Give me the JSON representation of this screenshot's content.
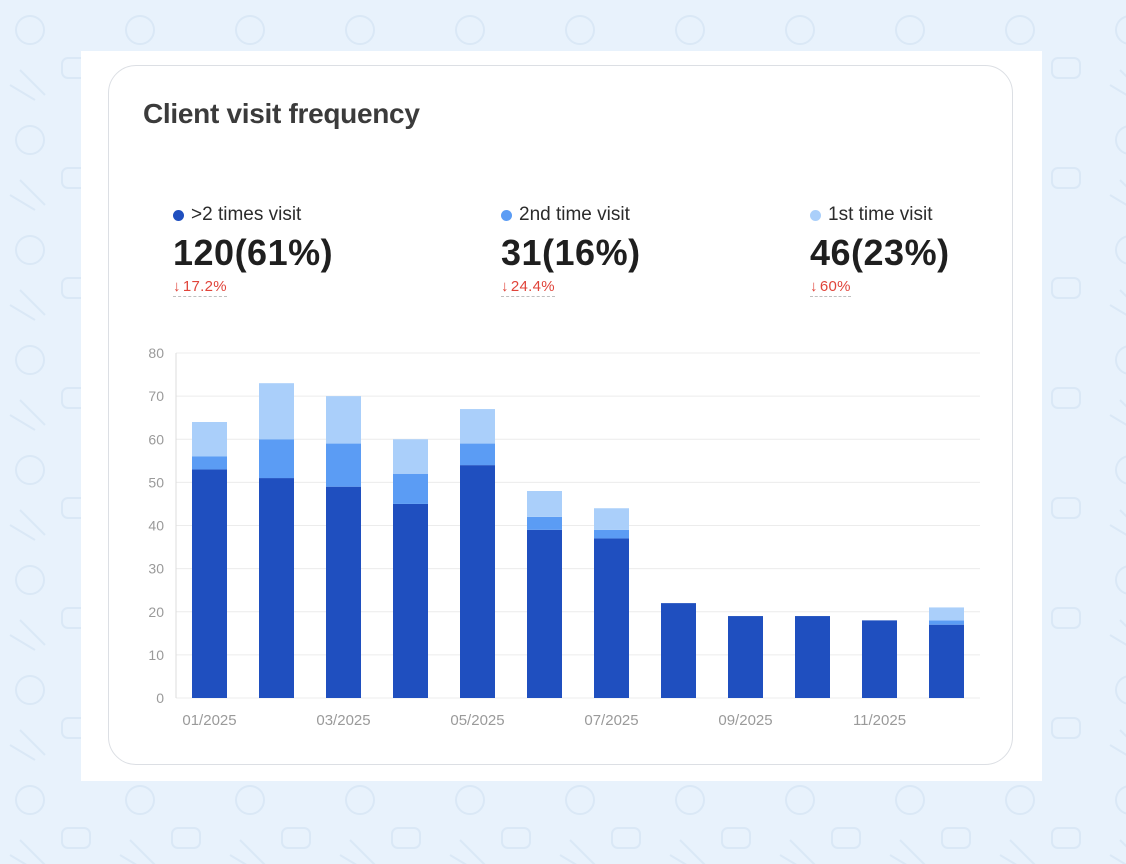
{
  "title": "Client visit frequency",
  "stats": [
    {
      "legend": ">2 times visit",
      "value": "120(61%)",
      "change_icon": "arrow-down-icon",
      "change": "17.2%",
      "color": "#1f4fbf"
    },
    {
      "legend": "2nd time visit",
      "value": "31(16%)",
      "change_icon": "arrow-down-icon",
      "change": "24.4%",
      "color": "#5b9cf4"
    },
    {
      "legend": "1st time visit",
      "value": "46(23%)",
      "change_icon": "arrow-down-icon",
      "change": "60%",
      "color": "#aacffa"
    }
  ],
  "colors": {
    "decrease": "#e0443a",
    "grid": "#ececec",
    "tick": "#9a9a9a",
    "card_bg": "#ffffff",
    "page_bg": "#e8f2fc"
  },
  "chart_data": {
    "type": "bar",
    "stacked": true,
    "categories": [
      "01/2025",
      "02/2025",
      "03/2025",
      "04/2025",
      "05/2025",
      "06/2025",
      "07/2025",
      "08/2025",
      "09/2025",
      "10/2025",
      "11/2025",
      "12/2025"
    ],
    "x_tick_labels": [
      "01/2025",
      "",
      "03/2025",
      "",
      "05/2025",
      "",
      "07/2025",
      "",
      "09/2025",
      "",
      "11/2025",
      ""
    ],
    "series": [
      {
        "name": ">2 times visit",
        "color": "#1f4fbf",
        "values": [
          53,
          51,
          49,
          45,
          54,
          39,
          37,
          22,
          19,
          19,
          18,
          17
        ]
      },
      {
        "name": "2nd time visit",
        "color": "#5b9cf4",
        "values": [
          3,
          9,
          10,
          7,
          5,
          3,
          2,
          0,
          0,
          0,
          0,
          1
        ]
      },
      {
        "name": "1st time visit",
        "color": "#aacffa",
        "values": [
          8,
          13,
          11,
          8,
          8,
          6,
          5,
          0,
          0,
          0,
          0,
          3
        ]
      }
    ],
    "ylim": [
      0,
      80
    ],
    "yticks": [
      0,
      10,
      20,
      30,
      40,
      50,
      60,
      70,
      80
    ],
    "grid": true,
    "xlabel": "",
    "ylabel": ""
  }
}
